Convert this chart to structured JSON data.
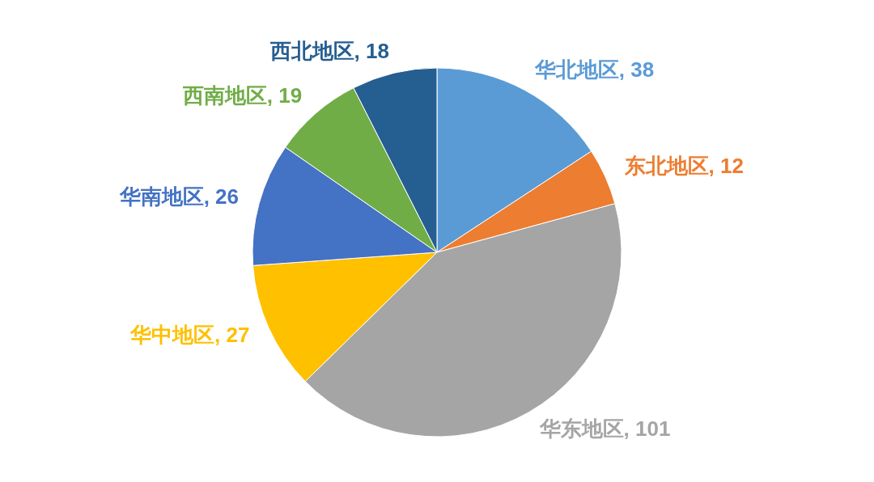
{
  "chart_data": {
    "type": "pie",
    "categories": [
      "华北地区",
      "东北地区",
      "华东地区",
      "华中地区",
      "华南地区",
      "西南地区",
      "西北地区"
    ],
    "values": [
      38,
      12,
      101,
      27,
      26,
      19,
      18
    ],
    "value_labels": [
      ", 38",
      ", 12",
      ", 101",
      ", 27",
      ", 26",
      ", 19",
      ", 18"
    ],
    "colors": [
      "#5b9bd5",
      "#ed7d31",
      "#a5a5a5",
      "#ffc000",
      "#4472c4",
      "#70ad47",
      "#255e91"
    ]
  }
}
